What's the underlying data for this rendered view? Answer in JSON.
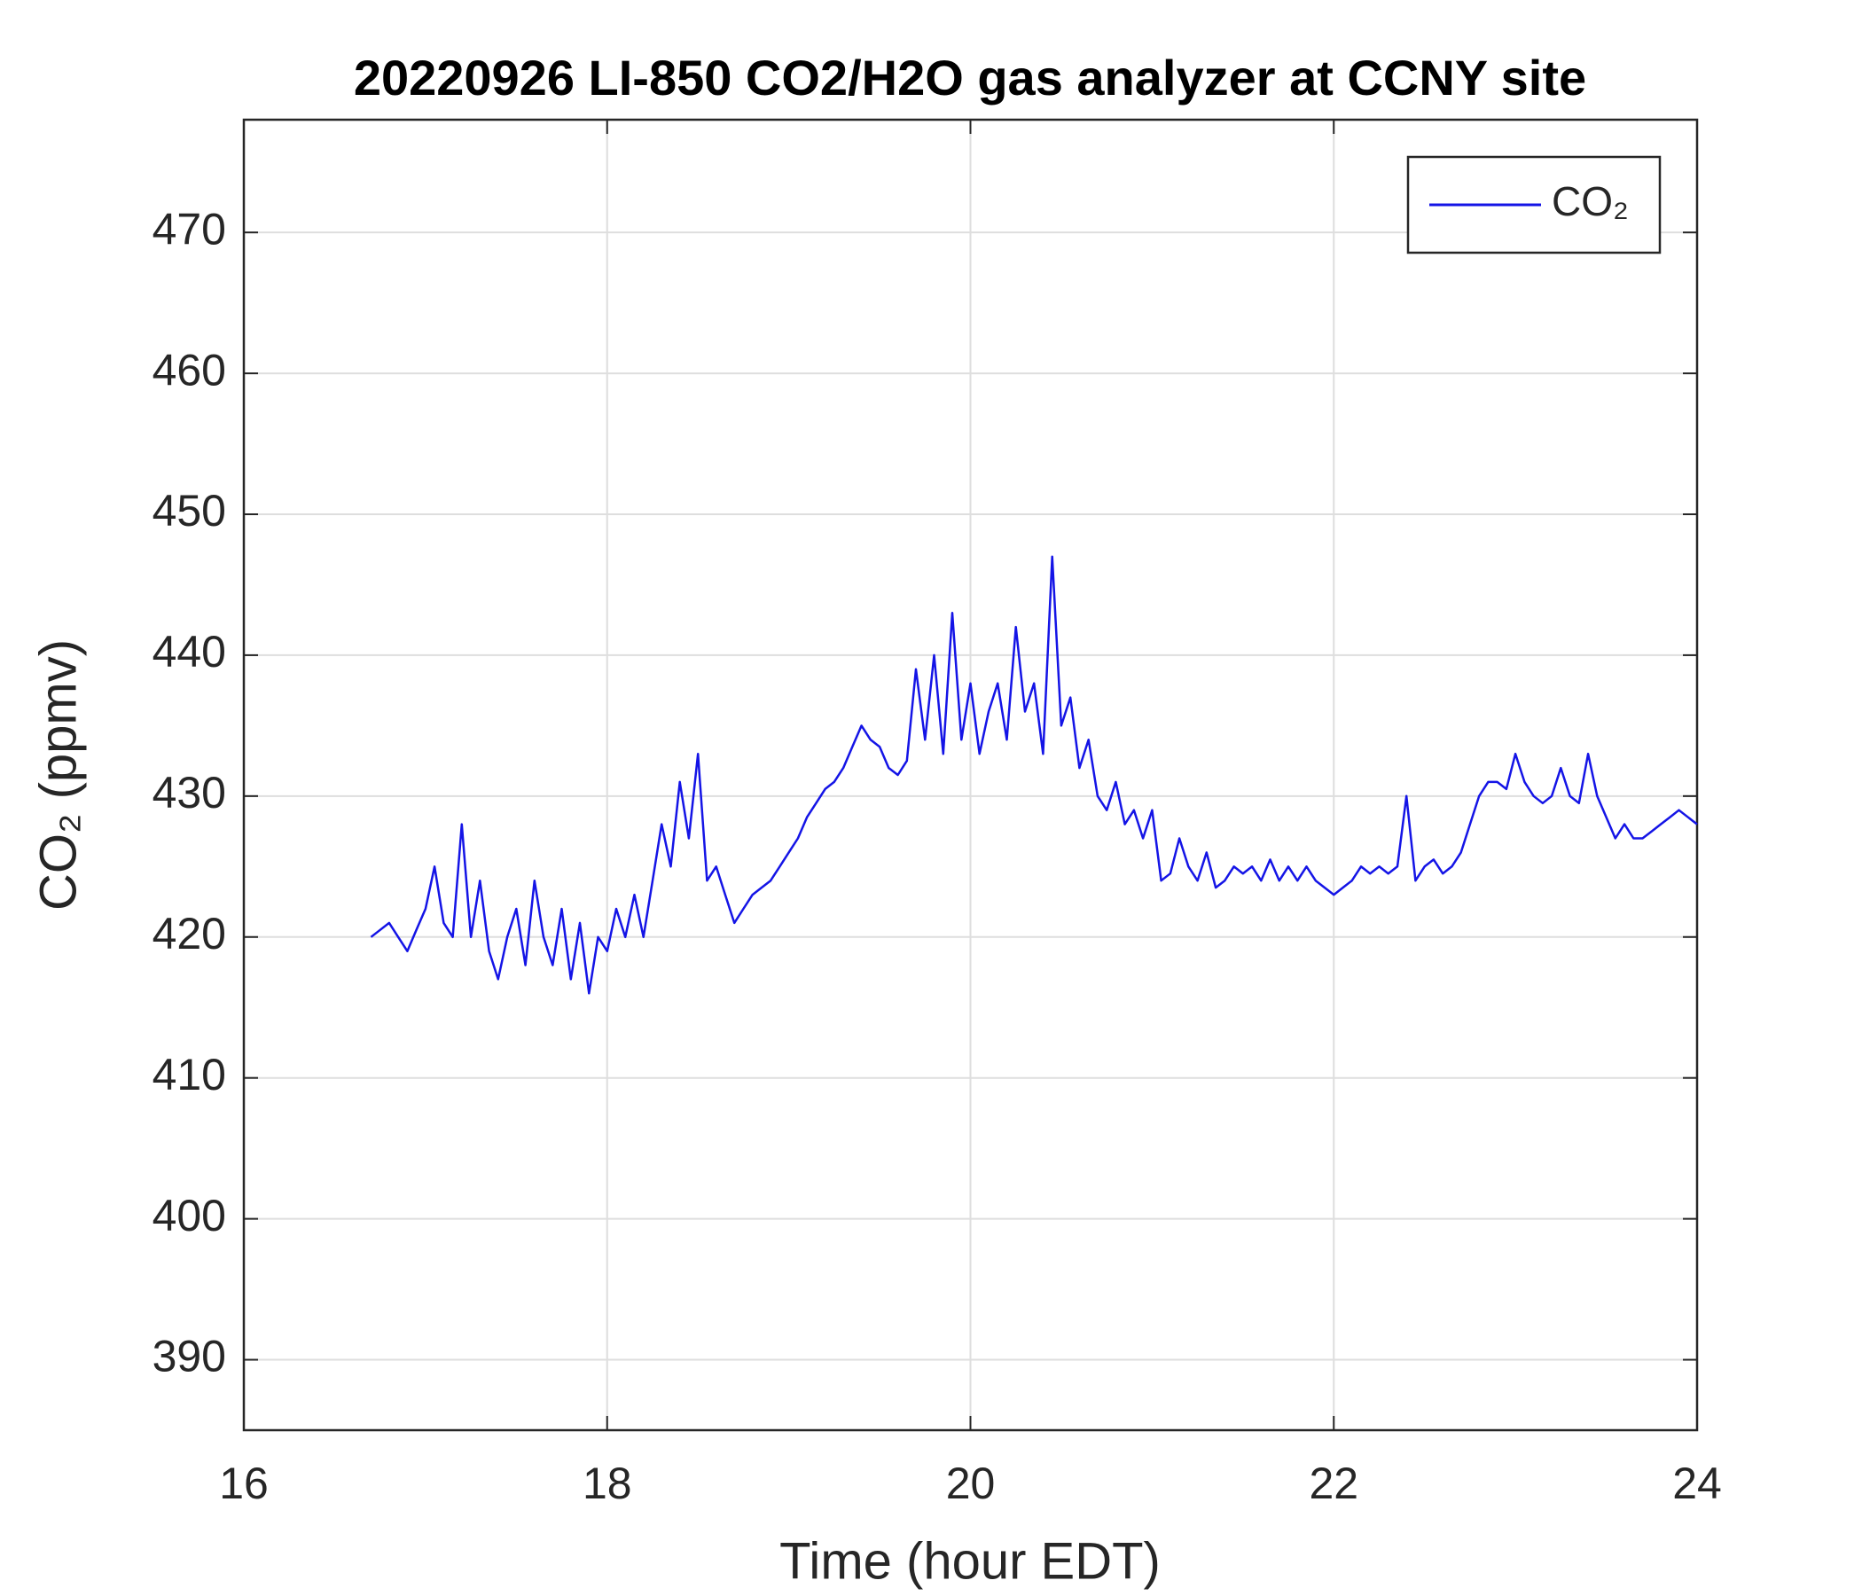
{
  "chart_data": {
    "type": "line",
    "title": "20220926 LI-850 CO2/H2O gas analyzer at CCNY site",
    "x_label": "Time (hour EDT)",
    "y_label": "CO₂ (ppmv)",
    "xlim": [
      16,
      24
    ],
    "xticks": [
      16,
      18,
      20,
      22,
      24
    ],
    "ylim": [
      385,
      478
    ],
    "yticks": [
      390,
      400,
      410,
      420,
      430,
      440,
      450,
      460,
      470
    ],
    "grid": true,
    "legend": "upper right",
    "x": [
      16.7,
      16.75,
      16.8,
      16.85,
      16.9,
      16.95,
      17.0,
      17.05,
      17.1,
      17.15,
      17.2,
      17.25,
      17.3,
      17.35,
      17.4,
      17.45,
      17.5,
      17.55,
      17.6,
      17.65,
      17.7,
      17.75,
      17.8,
      17.85,
      17.9,
      17.95,
      18.0,
      18.05,
      18.1,
      18.15,
      18.2,
      18.25,
      18.3,
      18.35,
      18.4,
      18.45,
      18.5,
      18.55,
      18.6,
      18.65,
      18.7,
      18.75,
      18.8,
      18.85,
      18.9,
      18.95,
      19.0,
      19.05,
      19.1,
      19.15,
      19.2,
      19.25,
      19.3,
      19.35,
      19.4,
      19.45,
      19.5,
      19.55,
      19.6,
      19.65,
      19.7,
      19.75,
      19.8,
      19.85,
      19.9,
      19.95,
      20.0,
      20.05,
      20.1,
      20.15,
      20.2,
      20.25,
      20.3,
      20.35,
      20.4,
      20.45,
      20.5,
      20.55,
      20.6,
      20.65,
      20.7,
      20.75,
      20.8,
      20.85,
      20.9,
      20.95,
      21.0,
      21.05,
      21.1,
      21.15,
      21.2,
      21.25,
      21.3,
      21.35,
      21.4,
      21.45,
      21.5,
      21.55,
      21.6,
      21.65,
      21.7,
      21.75,
      21.8,
      21.85,
      21.9,
      21.95,
      22.0,
      22.05,
      22.1,
      22.15,
      22.2,
      22.25,
      22.3,
      22.35,
      22.4,
      22.45,
      22.5,
      22.55,
      22.6,
      22.65,
      22.7,
      22.75,
      22.8,
      22.85,
      22.9,
      22.95,
      23.0,
      23.05,
      23.1,
      23.15,
      23.2,
      23.25,
      23.3,
      23.35,
      23.4,
      23.45,
      23.5,
      23.55,
      23.6,
      23.65,
      23.7,
      23.75,
      23.8,
      23.85,
      23.9,
      23.95,
      24.0
    ],
    "series": [
      {
        "name": "CO₂",
        "color": "#1414e6",
        "values": [
          420,
          420.5,
          421,
          420,
          419,
          420.5,
          422,
          425,
          421,
          420,
          428,
          420,
          424,
          419,
          417,
          420,
          422,
          418,
          424,
          420,
          418,
          422,
          417,
          421,
          416,
          420,
          419,
          422,
          420,
          423,
          420,
          424,
          428,
          425,
          431,
          427,
          433,
          424,
          425,
          423,
          421,
          422,
          423,
          423.5,
          424,
          425,
          426,
          427,
          428.5,
          429.5,
          430.5,
          431,
          432,
          433.5,
          435,
          434,
          433.5,
          432,
          431.5,
          432.5,
          439,
          434,
          440,
          433,
          443,
          434,
          438,
          433,
          436,
          438,
          434,
          442,
          436,
          438,
          433,
          447,
          435,
          437,
          432,
          434,
          430,
          429,
          431,
          428,
          429,
          427,
          429,
          424,
          424.5,
          427,
          425,
          424,
          426,
          423.5,
          424,
          425,
          424.5,
          425,
          424,
          425.5,
          424,
          425,
          424,
          425,
          424,
          423.5,
          423,
          423.5,
          424,
          425,
          424.5,
          425,
          424.5,
          425,
          430,
          424,
          425,
          425.5,
          424.5,
          425,
          426,
          428,
          430,
          431,
          431,
          430.5,
          433,
          431,
          430,
          429.5,
          430,
          432,
          430,
          429.5,
          433,
          430,
          428.5,
          427,
          428,
          427,
          427,
          427.5,
          428,
          428.5,
          429,
          428.5,
          428
        ]
      }
    ]
  }
}
